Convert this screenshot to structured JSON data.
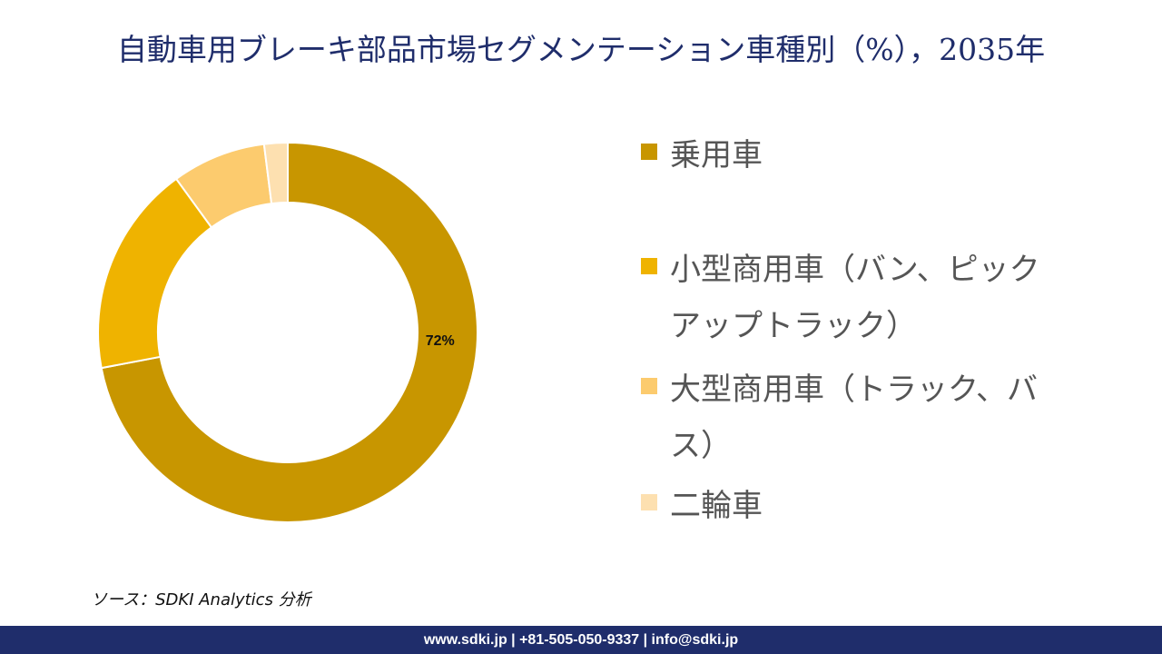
{
  "header": {
    "title": "自動車用ブレーキ部品市場セグメンテーション車種別（%），2035年"
  },
  "chart_data": {
    "type": "donut",
    "title": "自動車用ブレーキ部品市場セグメンテーション車種別（%），2035年",
    "series": [
      {
        "name": "乗用車",
        "value": 72,
        "color": "#c89600"
      },
      {
        "name": "小型商用車（バン、ピックアップトラック）",
        "value": 18,
        "color": "#efb300"
      },
      {
        "name": "大型商用車（トラック、バス）",
        "value": 8,
        "color": "#fccb6e"
      },
      {
        "name": "二輪車",
        "value": 2,
        "color": "#fde0b0"
      }
    ],
    "data_labels": [
      {
        "series": "乗用車",
        "text": "72%"
      }
    ],
    "legend_position": "right"
  },
  "source": {
    "text": "ソース：SDKI Analytics 分析"
  },
  "footer": {
    "text": "www.sdki.jp | +81-505-050-9337 | info@sdki.jp"
  }
}
